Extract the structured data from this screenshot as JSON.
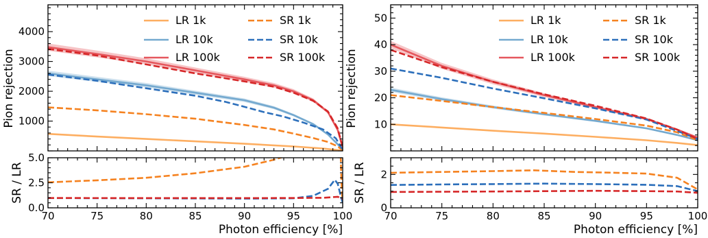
{
  "chart_data": [
    {
      "panel": "left",
      "type": "line",
      "main": {
        "ylabel": "Pion rejection",
        "xlim": [
          70,
          100
        ],
        "ylim": [
          0,
          4900
        ],
        "yticks": [
          1000,
          2000,
          3000,
          4000
        ],
        "legend_position": "top-right",
        "legend_columns": 2,
        "series": [
          {
            "name": "LR 1k",
            "color": "#fdae61",
            "style": "solid",
            "band": false,
            "points": [
              [
                70,
                570
              ],
              [
                75,
                480
              ],
              [
                80,
                400
              ],
              [
                85,
                320
              ],
              [
                90,
                240
              ],
              [
                95,
                150
              ],
              [
                98,
                80
              ],
              [
                100,
                10
              ]
            ]
          },
          {
            "name": "LR 10k",
            "color": "#74a9cf",
            "style": "solid",
            "band": true,
            "points": [
              [
                70,
                2600
              ],
              [
                75,
                2400
              ],
              [
                80,
                2200
              ],
              [
                85,
                1950
              ],
              [
                90,
                1700
              ],
              [
                93,
                1450
              ],
              [
                95,
                1200
              ],
              [
                97,
                900
              ],
              [
                98.5,
                550
              ],
              [
                99.5,
                220
              ],
              [
                100,
                20
              ]
            ]
          },
          {
            "name": "LR 100k",
            "color": "#e5575d",
            "style": "solid",
            "band": true,
            "points": [
              [
                70,
                3480
              ],
              [
                75,
                3250
              ],
              [
                80,
                3000
              ],
              [
                85,
                2700
              ],
              [
                90,
                2400
              ],
              [
                93,
                2200
              ],
              [
                95,
                2000
              ],
              [
                97,
                1700
              ],
              [
                98.5,
                1300
              ],
              [
                99.5,
                700
              ],
              [
                100,
                120
              ]
            ]
          },
          {
            "name": "SR 1k",
            "color": "#f58220",
            "style": "dashed",
            "band": false,
            "points": [
              [
                70,
                1460
              ],
              [
                75,
                1360
              ],
              [
                80,
                1230
              ],
              [
                85,
                1080
              ],
              [
                90,
                870
              ],
              [
                93,
                720
              ],
              [
                95,
                580
              ],
              [
                97,
                430
              ],
              [
                98.5,
                300
              ],
              [
                99.5,
                150
              ],
              [
                100,
                20
              ]
            ]
          },
          {
            "name": "SR 10k",
            "color": "#2c6fbb",
            "style": "dashed",
            "band": false,
            "points": [
              [
                70,
                2560
              ],
              [
                75,
                2350
              ],
              [
                80,
                2100
              ],
              [
                85,
                1850
              ],
              [
                88,
                1650
              ],
              [
                90,
                1480
              ],
              [
                92,
                1300
              ],
              [
                94,
                1150
              ],
              [
                96,
                950
              ],
              [
                98,
                720
              ],
              [
                99.3,
                420
              ],
              [
                100,
                30
              ]
            ]
          },
          {
            "name": "SR 100k",
            "color": "#d62728",
            "style": "dashed",
            "band": false,
            "points": [
              [
                70,
                3420
              ],
              [
                75,
                3200
              ],
              [
                80,
                2900
              ],
              [
                85,
                2600
              ],
              [
                90,
                2330
              ],
              [
                93,
                2150
              ],
              [
                95,
                1950
              ],
              [
                97,
                1680
              ],
              [
                98.5,
                1320
              ],
              [
                99.5,
                750
              ],
              [
                100,
                120
              ]
            ]
          }
        ]
      },
      "ratio": {
        "ylabel": "SR / LR",
        "xlabel": "Photon efficiency [%]",
        "xlim": [
          70,
          100
        ],
        "ylim": [
          0,
          5
        ],
        "yticks": [
          0.0,
          2.5,
          5.0
        ],
        "ytick_labels": [
          "0.0",
          "2.5",
          "5.0"
        ],
        "xticks": [
          70,
          75,
          80,
          85,
          90,
          95,
          100
        ],
        "series": [
          {
            "name": "SR 1k",
            "color": "#f58220",
            "style": "dashed",
            "points": [
              [
                70,
                2.55
              ],
              [
                75,
                2.75
              ],
              [
                80,
                3.0
              ],
              [
                85,
                3.45
              ],
              [
                90,
                4.1
              ],
              [
                93,
                4.8
              ],
              [
                94,
                5.1
              ]
            ]
          },
          {
            "name": "SR 1k",
            "color": "#f58220",
            "style": "dashed",
            "points": [
              [
                99.8,
                5.2
              ],
              [
                99.85,
                3.5
              ],
              [
                99.9,
                2.0
              ],
              [
                99.95,
                1.0
              ]
            ]
          },
          {
            "name": "SR 10k",
            "color": "#2c6fbb",
            "style": "dashed",
            "points": [
              [
                70,
                0.97
              ],
              [
                80,
                0.95
              ],
              [
                90,
                0.92
              ],
              [
                95,
                0.95
              ],
              [
                97,
                1.2
              ],
              [
                98.5,
                1.9
              ],
              [
                99.2,
                2.8
              ],
              [
                99.5,
                2.4
              ],
              [
                99.8,
                1.2
              ],
              [
                100,
                0.5
              ]
            ]
          },
          {
            "name": "SR 100k",
            "color": "#d62728",
            "style": "dashed",
            "points": [
              [
                70,
                0.98
              ],
              [
                80,
                0.97
              ],
              [
                90,
                0.97
              ],
              [
                95,
                0.98
              ],
              [
                98,
                1.0
              ],
              [
                99.5,
                1.1
              ],
              [
                100,
                0.9
              ]
            ]
          }
        ]
      }
    },
    {
      "panel": "right",
      "type": "line",
      "main": {
        "ylabel": "Pion rejection",
        "xlim": [
          70,
          100
        ],
        "ylim": [
          0,
          55
        ],
        "yticks": [
          10,
          20,
          30,
          40,
          50
        ],
        "legend_position": "top-right",
        "legend_columns": 2,
        "series": [
          {
            "name": "LR 1k",
            "color": "#fdae61",
            "style": "solid",
            "band": false,
            "points": [
              [
                70,
                10
              ],
              [
                75,
                8.8
              ],
              [
                80,
                7.6
              ],
              [
                85,
                6.5
              ],
              [
                90,
                5.3
              ],
              [
                95,
                4.0
              ],
              [
                98,
                3.0
              ],
              [
                100,
                2.2
              ]
            ]
          },
          {
            "name": "LR 10k",
            "color": "#74a9cf",
            "style": "solid",
            "band": true,
            "points": [
              [
                70,
                23
              ],
              [
                75,
                19.5
              ],
              [
                80,
                16.5
              ],
              [
                85,
                13.8
              ],
              [
                90,
                11.3
              ],
              [
                95,
                8.5
              ],
              [
                98,
                6
              ],
              [
                100,
                4
              ]
            ]
          },
          {
            "name": "LR 100k",
            "color": "#e5575d",
            "style": "solid",
            "band": true,
            "points": [
              [
                70,
                40
              ],
              [
                75,
                32
              ],
              [
                80,
                26
              ],
              [
                85,
                21
              ],
              [
                90,
                16.5
              ],
              [
                95,
                12
              ],
              [
                98,
                8
              ],
              [
                100,
                5
              ]
            ]
          },
          {
            "name": "SR 1k",
            "color": "#f58220",
            "style": "dashed",
            "band": false,
            "points": [
              [
                70,
                21
              ],
              [
                75,
                18.8
              ],
              [
                80,
                16.5
              ],
              [
                85,
                14.3
              ],
              [
                90,
                12
              ],
              [
                95,
                9.5
              ],
              [
                98,
                7
              ],
              [
                100,
                4
              ]
            ]
          },
          {
            "name": "SR 10k",
            "color": "#2c6fbb",
            "style": "dashed",
            "band": false,
            "points": [
              [
                70,
                31
              ],
              [
                75,
                27.5
              ],
              [
                80,
                23.5
              ],
              [
                85,
                19.8
              ],
              [
                90,
                16
              ],
              [
                95,
                11.8
              ],
              [
                98,
                7.5
              ],
              [
                100,
                4.5
              ]
            ]
          },
          {
            "name": "SR 100k",
            "color": "#d62728",
            "style": "dashed",
            "band": false,
            "points": [
              [
                70,
                38
              ],
              [
                75,
                31.5
              ],
              [
                80,
                26
              ],
              [
                85,
                21.3
              ],
              [
                90,
                17
              ],
              [
                95,
                12.2
              ],
              [
                98,
                8
              ],
              [
                100,
                4.5
              ]
            ]
          }
        ]
      },
      "ratio": {
        "ylabel": "SR / LR",
        "xlabel": "Photon efficiency [%]",
        "xlim": [
          70,
          100
        ],
        "ylim": [
          0,
          3
        ],
        "yticks": [
          0,
          2
        ],
        "ytick_labels": [
          "0",
          "2"
        ],
        "xticks": [
          70,
          75,
          80,
          85,
          90,
          95,
          100
        ],
        "series": [
          {
            "name": "SR 1k",
            "color": "#f58220",
            "style": "dashed",
            "points": [
              [
                70,
                2.1
              ],
              [
                75,
                2.15
              ],
              [
                80,
                2.2
              ],
              [
                84,
                2.25
              ],
              [
                88,
                2.15
              ],
              [
                92,
                2.1
              ],
              [
                95,
                2.05
              ],
              [
                98,
                1.8
              ],
              [
                100,
                1.1
              ]
            ]
          },
          {
            "name": "SR 10k",
            "color": "#2c6fbb",
            "style": "dashed",
            "points": [
              [
                70,
                1.37
              ],
              [
                75,
                1.4
              ],
              [
                80,
                1.42
              ],
              [
                85,
                1.45
              ],
              [
                90,
                1.42
              ],
              [
                95,
                1.38
              ],
              [
                98,
                1.3
              ],
              [
                100,
                1.0
              ]
            ]
          },
          {
            "name": "SR 100k",
            "color": "#d62728",
            "style": "dashed",
            "points": [
              [
                70,
                0.95
              ],
              [
                80,
                0.98
              ],
              [
                85,
                1.0
              ],
              [
                90,
                1.02
              ],
              [
                95,
                1.0
              ],
              [
                98,
                0.98
              ],
              [
                100,
                0.9
              ]
            ]
          }
        ]
      }
    }
  ]
}
